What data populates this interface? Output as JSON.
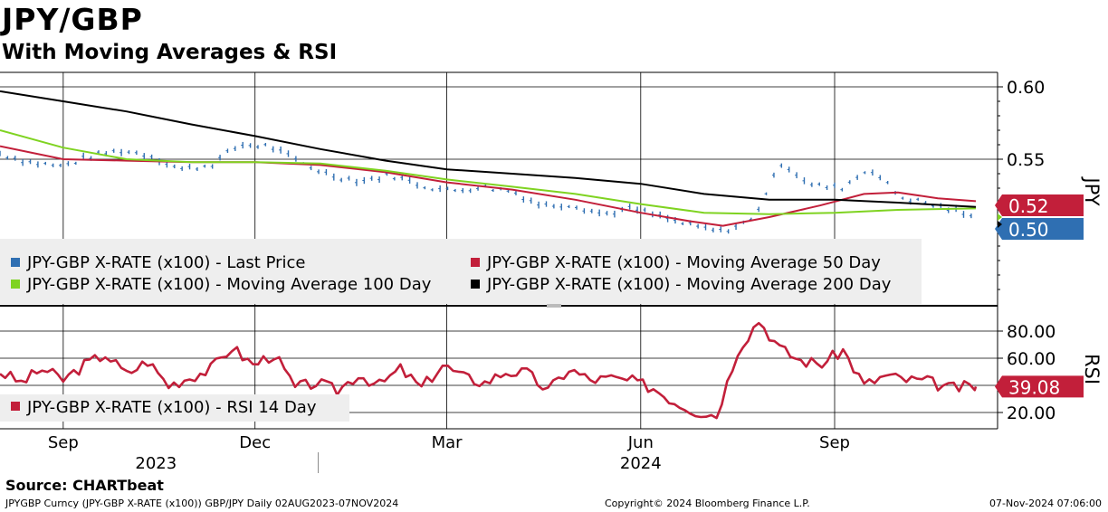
{
  "header": {
    "title": "JPY/GBP",
    "subtitle": "With Moving Averages & RSI"
  },
  "footer": {
    "source": "Source: CHARTbeat",
    "security": "JPYGBP Curncy (JPY-GBP X-RATE (x100)) GBP/JPY  Daily 02AUG2023-07NOV2024",
    "copyright": "Copyright© 2024 Bloomberg Finance L.P.",
    "timestamp": "07-Nov-2024 07:06:00"
  },
  "chart_data": [
    {
      "type": "line",
      "panel": "price",
      "y_axis_title": "JPY",
      "y_ticks": [
        "0.60",
        "0.55"
      ],
      "ylim": [
        0.45,
        0.6
      ],
      "x_range_dates": [
        "2023-08-02",
        "2024-11-07"
      ],
      "gridlines": true,
      "legend_position": "bottom-left",
      "last_value_labels": {
        "moving_average_50": "0.52",
        "last_price": "0.50"
      },
      "series": [
        {
          "key": "last_price",
          "name": "JPY-GBP X-RATE (x100) - Last Price",
          "color": "#2f6fb2",
          "style": "bar-ohlc",
          "x": [
            "2023-08-02",
            "2023-08-16",
            "2023-08-31",
            "2023-09-14",
            "2023-09-28",
            "2023-10-12",
            "2023-10-27",
            "2023-11-10",
            "2023-11-24",
            "2023-12-08",
            "2023-12-22",
            "2024-01-06",
            "2024-01-20",
            "2024-02-04",
            "2024-02-18",
            "2024-03-03",
            "2024-03-17",
            "2024-04-01",
            "2024-04-15",
            "2024-04-29",
            "2024-05-14",
            "2024-05-28",
            "2024-06-11",
            "2024-06-25",
            "2024-07-09",
            "2024-07-24",
            "2024-08-07",
            "2024-08-21",
            "2024-09-04",
            "2024-09-18",
            "2024-10-02",
            "2024-10-16",
            "2024-10-30",
            "2024-11-07"
          ],
          "y": [
            0.554,
            0.548,
            0.545,
            0.552,
            0.556,
            0.553,
            0.543,
            0.546,
            0.56,
            0.559,
            0.548,
            0.539,
            0.535,
            0.539,
            0.532,
            0.528,
            0.531,
            0.528,
            0.518,
            0.519,
            0.512,
            0.516,
            0.51,
            0.504,
            0.5,
            0.508,
            0.548,
            0.532,
            0.53,
            0.544,
            0.524,
            0.519,
            0.514,
            0.508
          ]
        },
        {
          "key": "moving_average_50",
          "name": "JPY-GBP X-RATE (x100) - Moving Average 50 Day",
          "color": "#c21f3a",
          "x": [
            "2023-08-02",
            "2023-09-01",
            "2023-10-01",
            "2023-11-01",
            "2023-12-01",
            "2024-01-01",
            "2024-02-01",
            "2024-03-01",
            "2024-04-01",
            "2024-05-01",
            "2024-06-01",
            "2024-06-25",
            "2024-07-10",
            "2024-08-01",
            "2024-08-25",
            "2024-09-15",
            "2024-10-01",
            "2024-10-20",
            "2024-11-07"
          ],
          "y": [
            0.559,
            0.55,
            0.549,
            0.548,
            0.548,
            0.546,
            0.541,
            0.534,
            0.529,
            0.522,
            0.513,
            0.507,
            0.504,
            0.51,
            0.518,
            0.526,
            0.527,
            0.523,
            0.521
          ]
        },
        {
          "key": "moving_average_100",
          "name": "JPY-GBP X-RATE (x100) - Moving Average 100 Day",
          "color": "#7fd321",
          "x": [
            "2023-08-02",
            "2023-09-01",
            "2023-10-01",
            "2023-11-01",
            "2023-12-01",
            "2024-01-01",
            "2024-02-01",
            "2024-03-01",
            "2024-04-01",
            "2024-05-01",
            "2024-06-01",
            "2024-07-01",
            "2024-08-01",
            "2024-09-01",
            "2024-10-01",
            "2024-11-07"
          ],
          "y": [
            0.57,
            0.558,
            0.55,
            0.548,
            0.548,
            0.547,
            0.542,
            0.536,
            0.531,
            0.526,
            0.519,
            0.513,
            0.512,
            0.513,
            0.515,
            0.516
          ]
        },
        {
          "key": "moving_average_200",
          "name": "JPY-GBP X-RATE (x100) - Moving Average 200 Day",
          "color": "#000000",
          "x": [
            "2023-08-02",
            "2023-09-01",
            "2023-10-01",
            "2023-11-01",
            "2023-12-01",
            "2024-01-01",
            "2024-02-01",
            "2024-03-01",
            "2024-04-01",
            "2024-05-01",
            "2024-06-01",
            "2024-07-01",
            "2024-08-01",
            "2024-09-01",
            "2024-10-01",
            "2024-11-07"
          ],
          "y": [
            0.597,
            0.59,
            0.583,
            0.574,
            0.566,
            0.557,
            0.549,
            0.543,
            0.54,
            0.537,
            0.533,
            0.526,
            0.522,
            0.522,
            0.52,
            0.517
          ]
        }
      ]
    },
    {
      "type": "line",
      "panel": "rsi",
      "y_axis_title": "RSI",
      "y_ticks": [
        "80.00",
        "60.00",
        "20.00"
      ],
      "ylim": [
        13,
        100
      ],
      "last_value_label": "39.08",
      "legend_position": "bottom-left",
      "gridlines": true,
      "series": [
        {
          "key": "rsi_14",
          "name": "JPY-GBP X-RATE (x100) - RSI 14 Day",
          "color": "#c21f3a",
          "x": [
            "2023-08-02",
            "2023-08-12",
            "2023-08-22",
            "2023-09-01",
            "2023-09-11",
            "2023-09-21",
            "2023-10-01",
            "2023-10-11",
            "2023-10-21",
            "2023-10-31",
            "2023-11-10",
            "2023-11-20",
            "2023-11-30",
            "2023-12-10",
            "2023-12-20",
            "2023-12-30",
            "2024-01-09",
            "2024-01-19",
            "2024-01-29",
            "2024-02-08",
            "2024-02-18",
            "2024-02-28",
            "2024-03-09",
            "2024-03-19",
            "2024-03-29",
            "2024-04-08",
            "2024-04-18",
            "2024-04-28",
            "2024-05-08",
            "2024-05-18",
            "2024-05-28",
            "2024-06-07",
            "2024-06-17",
            "2024-06-27",
            "2024-07-07",
            "2024-07-17",
            "2024-07-27",
            "2024-08-06",
            "2024-08-16",
            "2024-08-26",
            "2024-09-05",
            "2024-09-15",
            "2024-09-25",
            "2024-10-05",
            "2024-10-15",
            "2024-10-25",
            "2024-11-07"
          ],
          "y": [
            50,
            42,
            52,
            44,
            55,
            63,
            48,
            58,
            40,
            46,
            52,
            68,
            55,
            63,
            38,
            42,
            36,
            48,
            40,
            52,
            38,
            55,
            46,
            42,
            50,
            49,
            36,
            52,
            44,
            45,
            43,
            38,
            28,
            21,
            18,
            66,
            88,
            67,
            58,
            56,
            66,
            40,
            47,
            44,
            43,
            38,
            39.08
          ]
        }
      ]
    }
  ],
  "x_axis": {
    "month_labels": [
      {
        "label": "Sep",
        "date": "2023-09-01"
      },
      {
        "label": "Dec",
        "date": "2023-12-01"
      },
      {
        "label": "Mar",
        "date": "2024-03-01"
      },
      {
        "label": "Jun",
        "date": "2024-06-01"
      },
      {
        "label": "Sep",
        "date": "2024-09-01"
      }
    ],
    "year_labels": [
      {
        "label": "2023",
        "date": "2023-10-15"
      },
      {
        "label": "2024",
        "date": "2024-06-01"
      }
    ],
    "year_divider": "2023-12-31"
  },
  "colors": {
    "grid": "#000000",
    "legend_bg": "#eeeeee",
    "price_tag_blue": "#2f6fb2",
    "tag_red": "#c21f3a"
  }
}
